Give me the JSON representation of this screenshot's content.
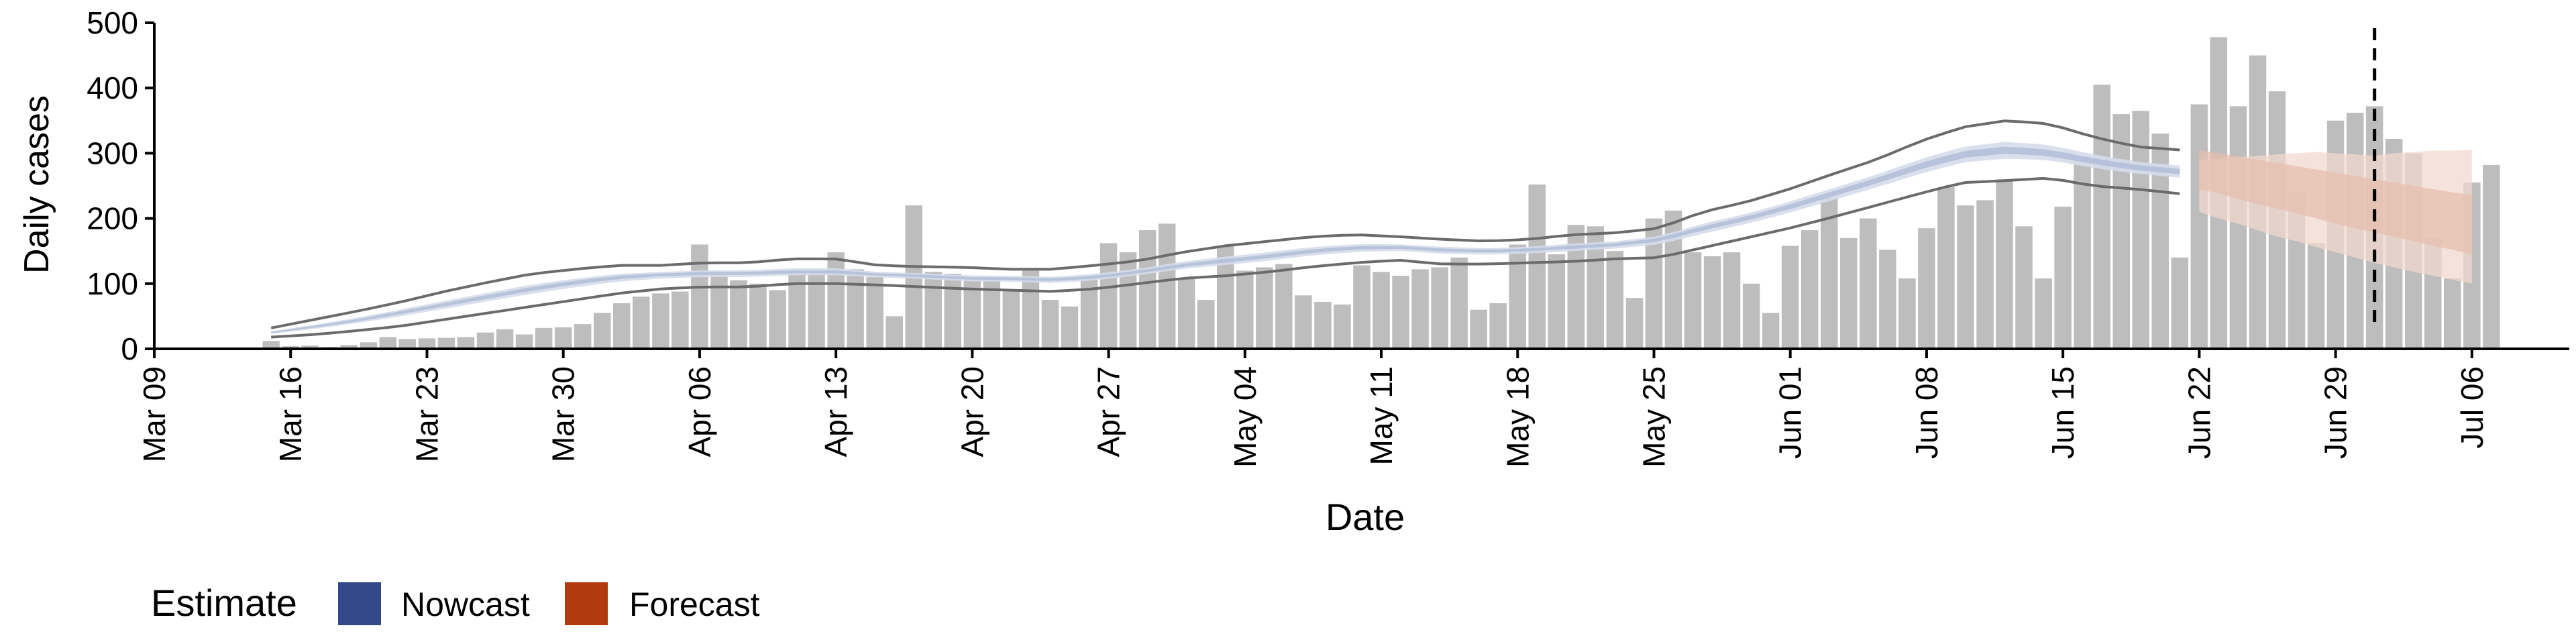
{
  "chart_data": {
    "type": "bar",
    "xlabel": "Date",
    "ylabel": "Daily cases",
    "ylim": [
      0,
      500
    ],
    "y_ticks": [
      0,
      100,
      200,
      300,
      400,
      500
    ],
    "x_ticks": [
      "Mar 09",
      "Mar 16",
      "Mar 23",
      "Mar 30",
      "Apr 06",
      "Apr 13",
      "Apr 20",
      "Apr 27",
      "May 04",
      "May 11",
      "May 18",
      "May 25",
      "Jun 01",
      "Jun 08",
      "Jun 15",
      "Jun 22",
      "Jun 29",
      "Jul 06"
    ],
    "x_tick_dates": [
      "2020-03-09",
      "2020-03-16",
      "2020-03-23",
      "2020-03-30",
      "2020-04-06",
      "2020-04-13",
      "2020-04-20",
      "2020-04-27",
      "2020-05-04",
      "2020-05-11",
      "2020-05-18",
      "2020-05-25",
      "2020-06-01",
      "2020-06-08",
      "2020-06-15",
      "2020-06-22",
      "2020-06-29",
      "2020-07-06"
    ],
    "x_range": [
      "2020-03-09",
      "2020-07-11"
    ],
    "bar_start_date": "2020-03-15",
    "daily_cases": [
      12,
      4,
      5,
      3,
      6,
      10,
      18,
      15,
      16,
      17,
      18,
      25,
      30,
      22,
      32,
      33,
      38,
      55,
      70,
      80,
      85,
      88,
      160,
      115,
      105,
      100,
      90,
      120,
      118,
      148,
      122,
      110,
      50,
      220,
      118,
      115,
      105,
      110,
      88,
      120,
      75,
      65,
      110,
      162,
      148,
      182,
      192,
      108,
      75,
      158,
      120,
      125,
      130,
      82,
      72,
      68,
      128,
      118,
      112,
      122,
      125,
      140,
      60,
      70,
      160,
      252,
      145,
      190,
      188,
      150,
      78,
      200,
      212,
      148,
      142,
      148,
      100,
      55,
      158,
      182,
      232,
      170,
      200,
      152,
      108,
      185,
      248,
      220,
      228,
      260,
      188,
      108,
      218,
      295,
      405,
      360,
      365,
      330,
      140,
      375,
      478,
      372,
      450,
      395,
      240,
      162,
      350,
      362,
      372,
      322,
      300,
      170,
      108,
      255,
      282
    ],
    "nowcast_end_date": "2020-06-21",
    "nowcast_ci90_lower": [
      30,
      40,
      50,
      58,
      68,
      78,
      88,
      98,
      105,
      112,
      112,
      112,
      110,
      110,
      105,
      102,
      98,
      98,
      96,
      98,
      108,
      118,
      122,
      128,
      140,
      148,
      155,
      160,
      163,
      162,
      160,
      158,
      165,
      182,
      200,
      218,
      238,
      255,
      268,
      275,
      268,
      258,
      250,
      245,
      242
    ],
    "nowcast_ci90_upper": [
      28,
      38,
      48,
      57,
      67,
      77,
      87,
      97,
      104,
      112,
      112,
      112,
      110,
      110,
      106,
      103,
      99,
      99,
      97,
      99,
      109,
      119,
      123,
      129,
      141,
      149,
      156,
      161,
      164,
      163,
      161,
      159,
      166,
      183,
      201,
      219,
      239,
      256,
      269,
      276,
      270,
      260,
      252,
      247,
      244
    ],
    "nowcast_ci90_lower_line": [
      18,
      22,
      28,
      35,
      45,
      55,
      65,
      75,
      85,
      92,
      95,
      95,
      100,
      100,
      98,
      95,
      92,
      90,
      88,
      92,
      100,
      108,
      112,
      118,
      126,
      132,
      136,
      130,
      130,
      132,
      134,
      138,
      140,
      155,
      170,
      185,
      202,
      220,
      238,
      255,
      258,
      262,
      250,
      245,
      238
    ],
    "nowcast_ci90_upper_line": [
      32,
      45,
      58,
      72,
      88,
      102,
      115,
      122,
      128,
      128,
      132,
      132,
      138,
      138,
      128,
      126,
      125,
      122,
      122,
      128,
      135,
      148,
      158,
      165,
      172,
      175,
      172,
      168,
      165,
      168,
      175,
      178,
      185,
      210,
      225,
      245,
      268,
      290,
      318,
      340,
      350,
      345,
      325,
      310,
      305
    ],
    "nowcast_median": [
      25,
      34,
      44,
      56,
      68,
      80,
      92,
      102,
      110,
      114,
      116,
      116,
      118,
      118,
      114,
      112,
      108,
      108,
      106,
      110,
      118,
      128,
      135,
      142,
      150,
      155,
      156,
      152,
      150,
      152,
      156,
      160,
      168,
      185,
      200,
      218,
      238,
      258,
      280,
      298,
      305,
      300,
      288,
      278,
      272
    ],
    "forecast_start_date": "2020-06-22",
    "forecast_end_date": "2020-07-06",
    "forecast_median": [
      278,
      270,
      262,
      255,
      248,
      240,
      232,
      225,
      218,
      212,
      205,
      198,
      192,
      186,
      180
    ],
    "forecast_ci50": [
      [
        245,
        305
      ],
      [
        238,
        300
      ],
      [
        230,
        295
      ],
      [
        222,
        290
      ],
      [
        215,
        285
      ],
      [
        208,
        280
      ],
      [
        200,
        275
      ],
      [
        192,
        270
      ],
      [
        185,
        265
      ],
      [
        178,
        260
      ],
      [
        172,
        255
      ],
      [
        165,
        250
      ],
      [
        158,
        245
      ],
      [
        152,
        240
      ],
      [
        145,
        236
      ]
    ],
    "forecast_ci90": [
      [
        210,
        290
      ],
      [
        200,
        292
      ],
      [
        192,
        294
      ],
      [
        182,
        296
      ],
      [
        172,
        298
      ],
      [
        165,
        300
      ],
      [
        156,
        302
      ],
      [
        148,
        300
      ],
      [
        140,
        298
      ],
      [
        132,
        296
      ],
      [
        125,
        300
      ],
      [
        118,
        302
      ],
      [
        112,
        304
      ],
      [
        106,
        304
      ],
      [
        100,
        305
      ]
    ],
    "vline_date": "2020-07-01",
    "legend": {
      "title": "Estimate",
      "items": [
        {
          "label": "Nowcast",
          "color": "#33498a"
        },
        {
          "label": "Forecast",
          "color": "#b23b0e"
        }
      ]
    },
    "colors": {
      "bars": "#bdbdbd",
      "nowcast_ribbon_outer": "#d5dbea",
      "nowcast_ribbon_inner": "#b3bfd9",
      "nowcast_lines": "#6b6b6b",
      "forecast_ribbon_outer": "#f1d9cf",
      "forecast_ribbon_inner": "#e6bfae",
      "vline": "#000000"
    }
  }
}
